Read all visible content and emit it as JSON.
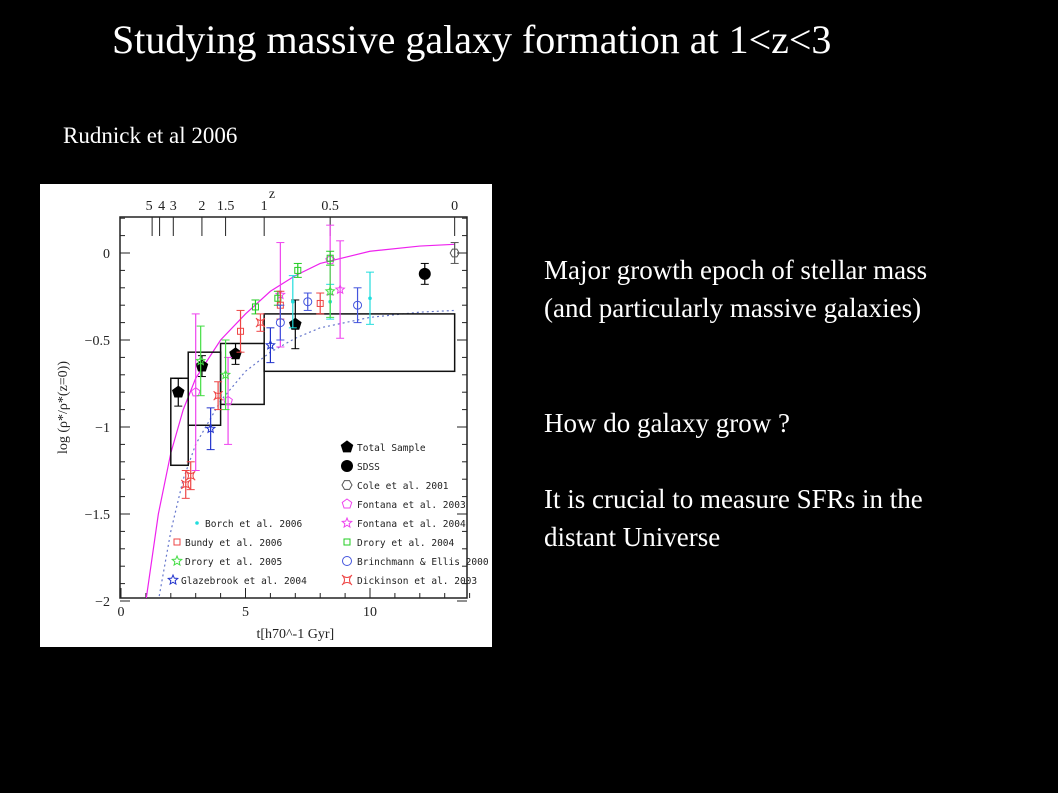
{
  "slide": {
    "title": "Studying massive galaxy formation at 1<z<3",
    "citation": "Rudnick et al 2006",
    "bullets": [
      [
        "Major growth epoch of stellar mass",
        "(and particularly massive galaxies)"
      ],
      [
        "How do galaxy grow ?"
      ],
      [
        "It is crucial to measure SFRs in the",
        "distant Universe"
      ]
    ]
  },
  "chart_data": {
    "type": "scatter",
    "xlabel": "t[h70^-1 Gyr]",
    "ylabel": "log (ρ*/ρ*(z=0))",
    "top_axis_label": "z",
    "xlim": [
      0,
      14
    ],
    "ylim": [
      -2,
      0.2
    ],
    "x_ticks": [
      0,
      5,
      10
    ],
    "y_ticks": [
      0,
      -0.5,
      -1,
      -1.5,
      -2
    ],
    "y_tick_labels": [
      "0",
      "−0.5",
      "−1",
      "−1.5",
      "−2"
    ],
    "top_ticks": [
      {
        "label": "5",
        "t": 1.25
      },
      {
        "label": "4",
        "t": 1.55
      },
      {
        "label": "3",
        "t": 2.1
      },
      {
        "label": "2",
        "t": 3.25
      },
      {
        "label": "1.5",
        "t": 4.2
      },
      {
        "label": "1",
        "t": 5.75
      },
      {
        "label": "0.5",
        "t": 8.4
      },
      {
        "label": "0",
        "t": 13.4
      }
    ],
    "series": [
      {
        "name": "Total Sample",
        "marker": "pentagon-filled",
        "color": "#000000",
        "points": [
          [
            2.3,
            -0.8,
            0.08
          ],
          [
            3.25,
            -0.65,
            0.06
          ],
          [
            4.6,
            -0.58,
            0.06
          ],
          [
            7.0,
            -0.41,
            0.14
          ]
        ]
      },
      {
        "name": "SDSS",
        "marker": "circle-filled",
        "color": "#000000",
        "points": [
          [
            12.2,
            -0.12,
            0.06
          ]
        ]
      },
      {
        "name": "Cole et al. 2001",
        "marker": "hexagon-open",
        "color": "#555555",
        "points": [
          [
            13.4,
            0.0,
            0.06
          ]
        ]
      },
      {
        "name": "Fontana et al. 2003",
        "marker": "pentagon-open",
        "color": "#ee44ee",
        "points": [
          [
            3.0,
            -0.8,
            0.45
          ],
          [
            4.3,
            -0.85,
            0.25
          ],
          [
            8.4,
            -0.04,
            0.2
          ]
        ]
      },
      {
        "name": "Fontana et al. 2004",
        "marker": "star-open",
        "color": "#ee44ee",
        "points": [
          [
            6.4,
            -0.24,
            0.3
          ],
          [
            8.8,
            -0.21,
            0.28
          ]
        ]
      },
      {
        "name": "Borch et al. 2006",
        "marker": "dot",
        "color": "#22dddd",
        "points": [
          [
            6.9,
            -0.28,
            0.15
          ],
          [
            8.4,
            -0.28,
            0.1
          ],
          [
            10.0,
            -0.26,
            0.15
          ]
        ]
      },
      {
        "name": "Drory et al. 2004",
        "marker": "square-open",
        "color": "#22cc22",
        "points": [
          [
            5.4,
            -0.31,
            0.04
          ],
          [
            6.3,
            -0.26,
            0.04
          ],
          [
            7.1,
            -0.1,
            0.04
          ],
          [
            8.4,
            -0.03,
            0.04
          ]
        ]
      },
      {
        "name": "Bundy et al. 2006",
        "marker": "square-open",
        "color": "#ee4444",
        "points": [
          [
            4.8,
            -0.45,
            0.12
          ],
          [
            6.4,
            -0.3,
            0.08
          ],
          [
            8.0,
            -0.29,
            0.06
          ]
        ]
      },
      {
        "name": "Brinchmann & Ellis 2000",
        "marker": "circle-open",
        "color": "#4455dd",
        "points": [
          [
            6.4,
            -0.4,
            0.1
          ],
          [
            7.5,
            -0.28,
            0.05
          ],
          [
            9.5,
            -0.3,
            0.1
          ]
        ]
      },
      {
        "name": "Drory et al. 2005",
        "marker": "star-open",
        "color": "#44dd44",
        "points": [
          [
            3.2,
            -0.62,
            0.2
          ],
          [
            4.2,
            -0.7,
            0.2
          ],
          [
            8.4,
            -0.22,
            0.15
          ]
        ]
      },
      {
        "name": "Dickinson et al. 2003",
        "marker": "astroid",
        "color": "#ee4444",
        "points": [
          [
            2.6,
            -1.33,
            0.08
          ],
          [
            2.8,
            -1.28,
            0.08
          ],
          [
            3.9,
            -0.82,
            0.08
          ],
          [
            5.6,
            -0.4,
            0.05
          ]
        ]
      },
      {
        "name": "Glazebrook et al. 2004",
        "marker": "star-open",
        "color": "#2233cc",
        "points": [
          [
            3.6,
            -1.01,
            0.12
          ],
          [
            6.0,
            -0.53,
            0.1
          ]
        ]
      }
    ],
    "boxes": [
      {
        "t": [
          2.0,
          2.7
        ],
        "y": [
          -1.22,
          -0.72
        ]
      },
      {
        "t": [
          2.7,
          4.0
        ],
        "y": [
          -0.99,
          -0.57
        ]
      },
      {
        "t": [
          4.0,
          5.75
        ],
        "y": [
          -0.87,
          -0.52
        ]
      },
      {
        "t": [
          5.75,
          13.4
        ],
        "y": [
          -0.68,
          -0.35
        ]
      }
    ],
    "curves": [
      {
        "style": "solid",
        "color": "#ee22ee",
        "points": [
          [
            1.0,
            -2.0
          ],
          [
            1.5,
            -1.5
          ],
          [
            2.0,
            -1.15
          ],
          [
            2.5,
            -0.9
          ],
          [
            3.0,
            -0.72
          ],
          [
            4.0,
            -0.5
          ],
          [
            5.0,
            -0.35
          ],
          [
            6.0,
            -0.22
          ],
          [
            7.0,
            -0.13
          ],
          [
            8.0,
            -0.06
          ],
          [
            10.0,
            0.01
          ],
          [
            12.0,
            0.04
          ],
          [
            13.4,
            0.05
          ]
        ]
      },
      {
        "style": "dotted",
        "color": "#6677cc",
        "points": [
          [
            1.5,
            -2.0
          ],
          [
            2.0,
            -1.6
          ],
          [
            2.5,
            -1.3
          ],
          [
            3.0,
            -1.1
          ],
          [
            4.0,
            -0.85
          ],
          [
            5.0,
            -0.68
          ],
          [
            6.0,
            -0.57
          ],
          [
            7.0,
            -0.49
          ],
          [
            8.0,
            -0.43
          ],
          [
            10.0,
            -0.37
          ],
          [
            12.0,
            -0.34
          ],
          [
            13.4,
            -0.33
          ]
        ]
      }
    ],
    "legend": "bottom-right",
    "grid": false
  }
}
